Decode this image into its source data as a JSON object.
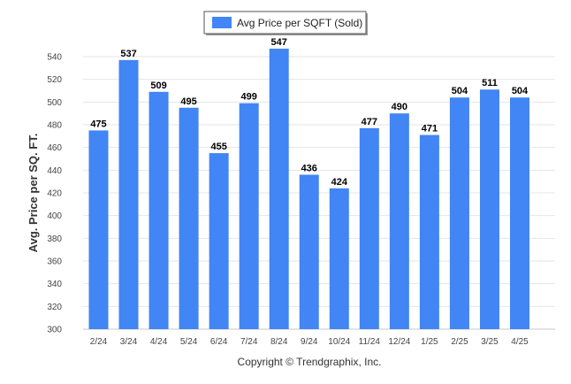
{
  "chart_data": {
    "type": "bar",
    "categories": [
      "2/24",
      "3/24",
      "4/24",
      "5/24",
      "6/24",
      "7/24",
      "8/24",
      "9/24",
      "10/24",
      "11/24",
      "12/24",
      "1/25",
      "2/25",
      "3/25",
      "4/25"
    ],
    "series": [
      {
        "name": "Avg Price per SQFT (Sold)",
        "values": [
          475,
          537,
          509,
          495,
          455,
          499,
          547,
          436,
          424,
          477,
          490,
          471,
          504,
          511,
          504
        ],
        "color": "#4285f4"
      }
    ],
    "ylabel": "Avg. Price per SQ. FT.",
    "ylim": [
      300,
      550
    ],
    "yticks": [
      300,
      320,
      340,
      360,
      380,
      400,
      420,
      440,
      460,
      480,
      500,
      520,
      540
    ],
    "grid": true,
    "legend_position": "top-center"
  },
  "footer": {
    "credit": "Copyright © Trendgraphix, Inc."
  }
}
